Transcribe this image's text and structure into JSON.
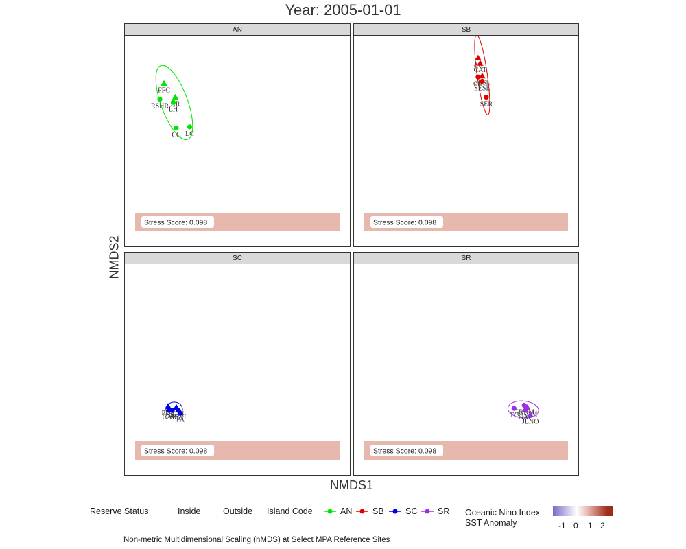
{
  "title": "Year: 2005-01-01",
  "x_axis_label": "NMDS1",
  "y_axis_label": "NMDS2",
  "caption": "Non-metric Multidimensional Scaling (nMDS) at Select MPA Reference Sites",
  "legend": {
    "reserve_status_title": "Reserve Status",
    "reserve_status_items": [
      "Inside",
      "Outside"
    ],
    "island_code_title": "Island Code",
    "island_code_items": [
      {
        "label": "AN",
        "color": "#00e600"
      },
      {
        "label": "SB",
        "color": "#e00000"
      },
      {
        "label": "SC",
        "color": "#0000e0"
      },
      {
        "label": "SR",
        "color": "#9b30e0"
      }
    ],
    "sst_title_line1": "Oceanic Nino Index",
    "sst_title_line2": "SST Anomaly",
    "sst_ticks": [
      "-1",
      "0",
      "1",
      "2"
    ]
  },
  "chart_data": {
    "type": "scatter",
    "facets": [
      "AN",
      "SB",
      "SC",
      "SR"
    ],
    "stress_label": "Stress Score: 0.098",
    "stress_fill": "#e6b8ae",
    "panels": [
      {
        "facet": "AN",
        "color": "#00e600",
        "points": [
          {
            "label": "FFC",
            "shape": "triangle",
            "x": -0.62,
            "y": 0.55
          },
          {
            "label": "RSHR",
            "shape": "circle",
            "x": -0.66,
            "y": 0.4
          },
          {
            "label": "AR",
            "shape": "triangle",
            "x": -0.51,
            "y": 0.42
          },
          {
            "label": "LH",
            "shape": "circle",
            "x": -0.53,
            "y": 0.37
          },
          {
            "label": "CC",
            "shape": "circle",
            "x": -0.5,
            "y": 0.13
          },
          {
            "label": "LC",
            "shape": "circle",
            "x": -0.37,
            "y": 0.14
          }
        ],
        "ellipse": {
          "cx": -0.52,
          "cy": 0.37,
          "rx": 0.13,
          "ry": 0.37,
          "angle": -20
        }
      },
      {
        "facet": "SB",
        "color": "#e00000",
        "points": [
          {
            "label": "AR",
            "shape": "triangle",
            "x": 0.21,
            "y": 0.79
          },
          {
            "label": "CAT",
            "shape": "triangle",
            "x": 0.23,
            "y": 0.74
          },
          {
            "label": "CH",
            "shape": "circle",
            "x": 0.21,
            "y": 0.61
          },
          {
            "label": "SESL",
            "shape": "triangle",
            "x": 0.25,
            "y": 0.62
          },
          {
            "label": "SESL",
            "shape": "circle",
            "x": 0.25,
            "y": 0.57
          },
          {
            "label": "SER",
            "shape": "circle",
            "x": 0.29,
            "y": 0.42
          }
        ],
        "ellipse": {
          "cx": 0.25,
          "cy": 0.63,
          "rx": 0.05,
          "ry": 0.38,
          "angle": -8
        }
      },
      {
        "facet": "SC",
        "color": "#0000e0",
        "points": [
          {
            "label": "PUE",
            "shape": "triangle",
            "x": -0.58,
            "y": -0.34
          },
          {
            "label": "SCAI",
            "shape": "triangle",
            "x": -0.5,
            "y": -0.35
          },
          {
            "label": "CAV",
            "shape": "circle",
            "x": -0.57,
            "y": -0.38
          },
          {
            "label": "GAL",
            "shape": "circle",
            "x": -0.54,
            "y": -0.38
          },
          {
            "label": "SCAI",
            "shape": "circle",
            "x": -0.48,
            "y": -0.38
          },
          {
            "label": "PA",
            "shape": "triangle",
            "x": -0.46,
            "y": -0.4
          }
        ],
        "ellipse": {
          "cx": -0.52,
          "cy": -0.37,
          "rx": 0.08,
          "ry": 0.07,
          "angle": 0
        }
      },
      {
        "facet": "SR",
        "color": "#9b30e0",
        "points": [
          {
            "label": "TC",
            "shape": "circle",
            "x": 0.56,
            "y": -0.36
          },
          {
            "label": "CRAM",
            "shape": "circle",
            "x": 0.66,
            "y": -0.33
          },
          {
            "label": "CRAM",
            "shape": "triangle",
            "x": 0.69,
            "y": -0.35
          },
          {
            "label": "GAP",
            "shape": "circle",
            "x": 0.67,
            "y": -0.38
          },
          {
            "label": "JLNO",
            "shape": "triangle",
            "x": 0.72,
            "y": -0.42
          }
        ],
        "ellipse": {
          "cx": 0.65,
          "cy": -0.37,
          "rx": 0.15,
          "ry": 0.08,
          "angle": 5
        }
      }
    ],
    "xlim": [
      -1.0,
      1.2
    ],
    "ylim": [
      -1.0,
      1.0
    ],
    "grid": false,
    "legend_position": "bottom"
  }
}
